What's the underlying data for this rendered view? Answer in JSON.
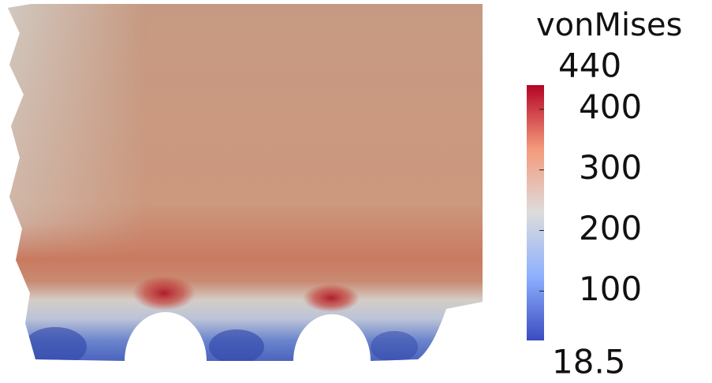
{
  "legend": {
    "title": "vonMises",
    "min": 18.5,
    "max": 440,
    "ticks": [
      100,
      200,
      300,
      400
    ]
  }
}
